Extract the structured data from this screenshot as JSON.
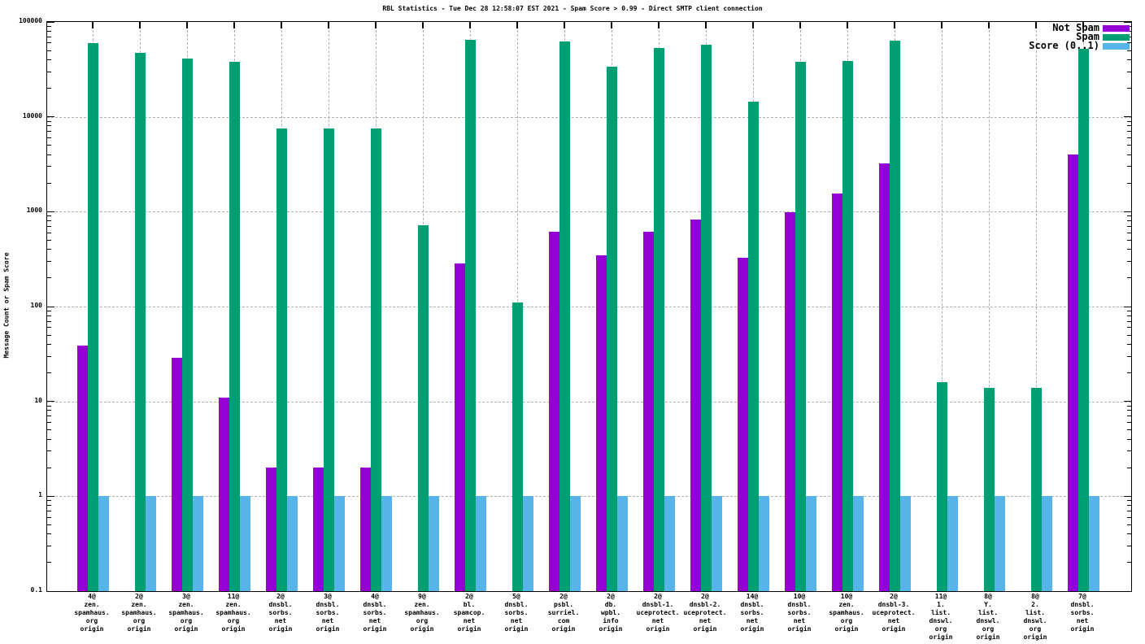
{
  "chart_data": {
    "type": "bar",
    "title": "RBL Statistics - Tue Dec 28 12:58:07 EST 2021 - Spam Score > 0.99 - Direct SMTP client connection",
    "ylabel": "Message Count or Spam Score",
    "xlabel": "",
    "yscale": "log",
    "ylim": [
      0.1,
      100000
    ],
    "yticks": [
      100000,
      10000,
      1000,
      100,
      10,
      1,
      0.1
    ],
    "grid": true,
    "legend_position": "top-right-inside",
    "categories": [
      [
        "4@",
        "zen.",
        "spamhaus.",
        "org",
        "origin"
      ],
      [
        "2@",
        "zen.",
        "spamhaus.",
        "org",
        "origin"
      ],
      [
        "3@",
        "zen.",
        "spamhaus.",
        "org",
        "origin"
      ],
      [
        "11@",
        "zen.",
        "spamhaus.",
        "org",
        "origin"
      ],
      [
        "2@",
        "dnsbl.",
        "sorbs.",
        "net",
        "origin"
      ],
      [
        "3@",
        "dnsbl.",
        "sorbs.",
        "net",
        "origin"
      ],
      [
        "4@",
        "dnsbl.",
        "sorbs.",
        "net",
        "origin"
      ],
      [
        "9@",
        "zen.",
        "spamhaus.",
        "org",
        "origin"
      ],
      [
        "2@",
        "bl.",
        "spamcop.",
        "net",
        "origin"
      ],
      [
        "5@",
        "dnsbl.",
        "sorbs.",
        "net",
        "origin"
      ],
      [
        "2@",
        "psbl.",
        "surriel.",
        "com",
        "origin"
      ],
      [
        "2@",
        "db.",
        "wpbl.",
        "info",
        "origin"
      ],
      [
        "2@",
        "dnsbl-1.",
        "uceprotect.",
        "net",
        "origin"
      ],
      [
        "2@",
        "dnsbl-2.",
        "uceprotect.",
        "net",
        "origin"
      ],
      [
        "14@",
        "dnsbl.",
        "sorbs.",
        "net",
        "origin"
      ],
      [
        "10@",
        "dnsbl.",
        "sorbs.",
        "net",
        "origin"
      ],
      [
        "10@",
        "zen.",
        "spamhaus.",
        "org",
        "origin"
      ],
      [
        "2@",
        "dnsbl-3.",
        "uceprotect.",
        "net",
        "origin"
      ],
      [
        "11@",
        "1.",
        "list.",
        "dnswl.",
        "org",
        "origin"
      ],
      [
        "8@",
        "Y.",
        "list.",
        "dnswl.",
        "org",
        "origin"
      ],
      [
        "8@",
        "2.",
        "list.",
        "dnswl.",
        "org",
        "origin"
      ],
      [
        "7@",
        "dnsbl.",
        "sorbs.",
        "net",
        "origin"
      ]
    ],
    "series": [
      {
        "name": "Not Spam",
        "color": "#9400d3",
        "values": [
          39,
          0,
          29,
          11,
          2,
          2,
          2,
          0,
          285,
          0,
          620,
          350,
          610,
          830,
          330,
          980,
          1540,
          3200,
          0,
          0,
          0,
          4000
        ]
      },
      {
        "name": "Spam",
        "color": "#009e73",
        "values": [
          60000,
          47000,
          41000,
          38000,
          7500,
          7500,
          7500,
          720,
          65000,
          110,
          62000,
          34000,
          53000,
          58000,
          14500,
          38000,
          39000,
          63000,
          16,
          14,
          14,
          52000
        ]
      },
      {
        "name": "Score (0..1)",
        "color": "#56b4e9",
        "values": [
          1,
          1,
          1,
          1,
          1,
          1,
          1,
          1,
          1,
          1,
          1,
          1,
          1,
          1,
          1,
          1,
          1,
          1,
          1,
          1,
          1,
          1
        ]
      }
    ]
  }
}
